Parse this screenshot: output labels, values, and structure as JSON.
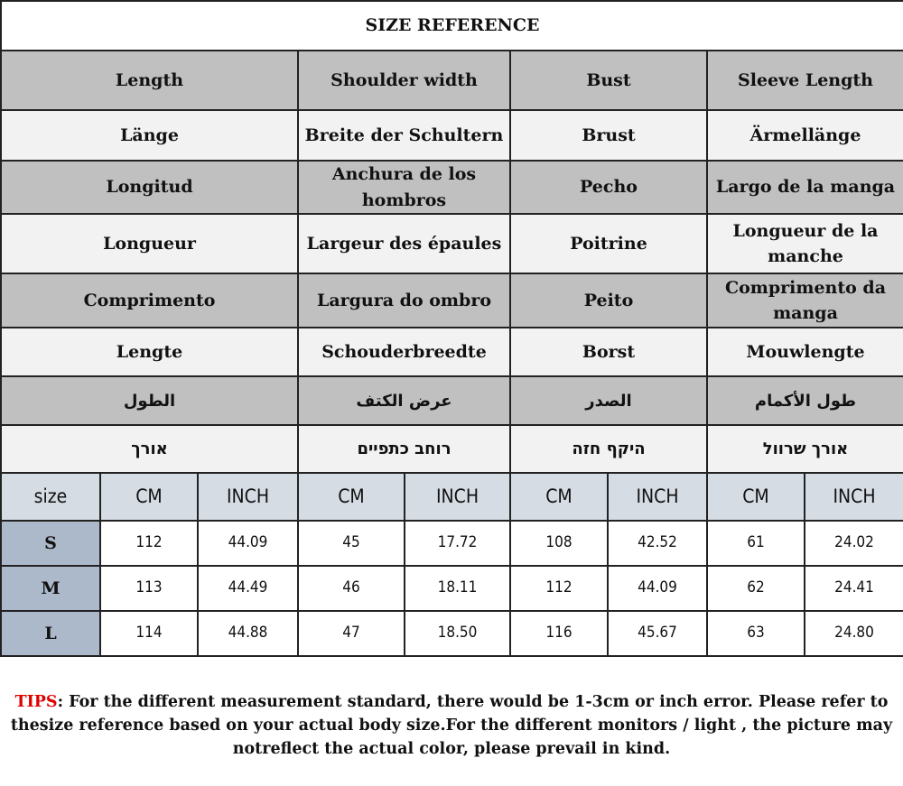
{
  "title": "SIZE REFERENCE",
  "header_rows": [
    [
      "Length",
      "Shoulder width",
      "Bust",
      "Sleeve Length"
    ],
    [
      "Länge",
      "Breite der Schultern",
      "Brust",
      "Ärmellänge"
    ],
    [
      "Longitud",
      "Anchura de los hombros",
      "Pecho",
      "Largo de la manga"
    ],
    [
      "Longueur",
      "Largeur des épaules",
      "Poitrine",
      "Longueur de la manche"
    ],
    [
      "Comprimento",
      "Largura do ombro",
      "Peito",
      "Comprimento da manga"
    ],
    [
      "Lengte",
      "Schouderbreedte",
      "Borst",
      "Mouwlengte"
    ],
    [
      "الطول",
      "عرض الكتف",
      "الصدر",
      "طول الأكمام"
    ],
    [
      "אורך",
      "רוחב כתפיים",
      "היקף חזה",
      "אורך שרוול"
    ]
  ],
  "units": [
    "size",
    "CM",
    "INCH",
    "CM",
    "INCH",
    "CM",
    "INCH",
    "CM",
    "INCH"
  ],
  "rows": [
    [
      "S",
      "112",
      "44.09",
      "45",
      "17.72",
      "108",
      "42.52",
      "61",
      "24.02"
    ],
    [
      "M",
      "113",
      "44.49",
      "46",
      "18.11",
      "112",
      "44.09",
      "62",
      "24.41"
    ],
    [
      "L",
      "114",
      "44.88",
      "47",
      "18.50",
      "116",
      "45.67",
      "63",
      "24.80"
    ]
  ],
  "tips": {
    "label": "TIPS",
    "text": ": For the different measurement standard, there would be 1-3cm or inch error. Please refer to thesize reference based on your actual body size.For the different monitors / light , the picture may notreflect the actual color, please prevail in kind."
  },
  "colors": {
    "gray_row": "#c0c0c0",
    "light_row": "#f2f2f2",
    "unit_row": "#d6dce4",
    "size_cell": "#acb9ca",
    "tips_label": "#e00000"
  }
}
